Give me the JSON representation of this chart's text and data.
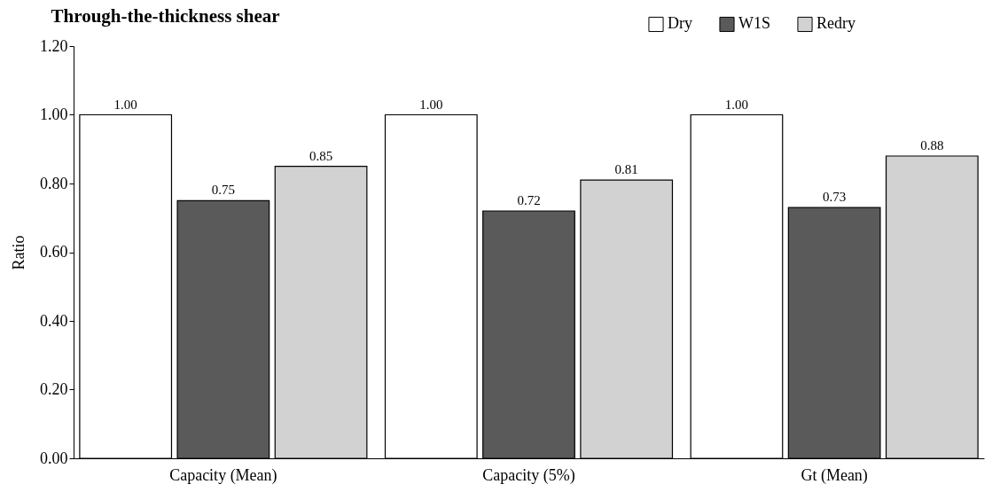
{
  "chart_data": {
    "type": "bar",
    "title": "Through-the-thickness shear",
    "ylabel": "Ratio",
    "categories": [
      "Capacity (Mean)",
      "Capacity (5%)",
      "Gt (Mean)"
    ],
    "series": [
      {
        "name": "Dry",
        "color": "#ffffff",
        "values": [
          1.0,
          1.0,
          1.0
        ],
        "value_labels": [
          "1.00",
          "1.00",
          "1.00"
        ]
      },
      {
        "name": "W1S",
        "color": "#5a5a5a",
        "values": [
          0.75,
          0.72,
          0.73
        ],
        "value_labels": [
          "0.75",
          "0.72",
          "0.73"
        ]
      },
      {
        "name": "Redry",
        "color": "#d2d2d2",
        "values": [
          0.85,
          0.81,
          0.88
        ],
        "value_labels": [
          "0.85",
          "0.81",
          "0.88"
        ]
      }
    ],
    "ylim": [
      0,
      1.2
    ],
    "yticks": [
      {
        "value": 0,
        "label": "0.00"
      },
      {
        "value": 0.2,
        "label": "0.20"
      },
      {
        "value": 0.4,
        "label": "0.40"
      },
      {
        "value": 0.6,
        "label": "0.60"
      },
      {
        "value": 0.8,
        "label": "0.80"
      },
      {
        "value": 1,
        "label": "1.00"
      },
      {
        "value": 1.2,
        "label": "1.20"
      }
    ],
    "legend": "top right"
  }
}
